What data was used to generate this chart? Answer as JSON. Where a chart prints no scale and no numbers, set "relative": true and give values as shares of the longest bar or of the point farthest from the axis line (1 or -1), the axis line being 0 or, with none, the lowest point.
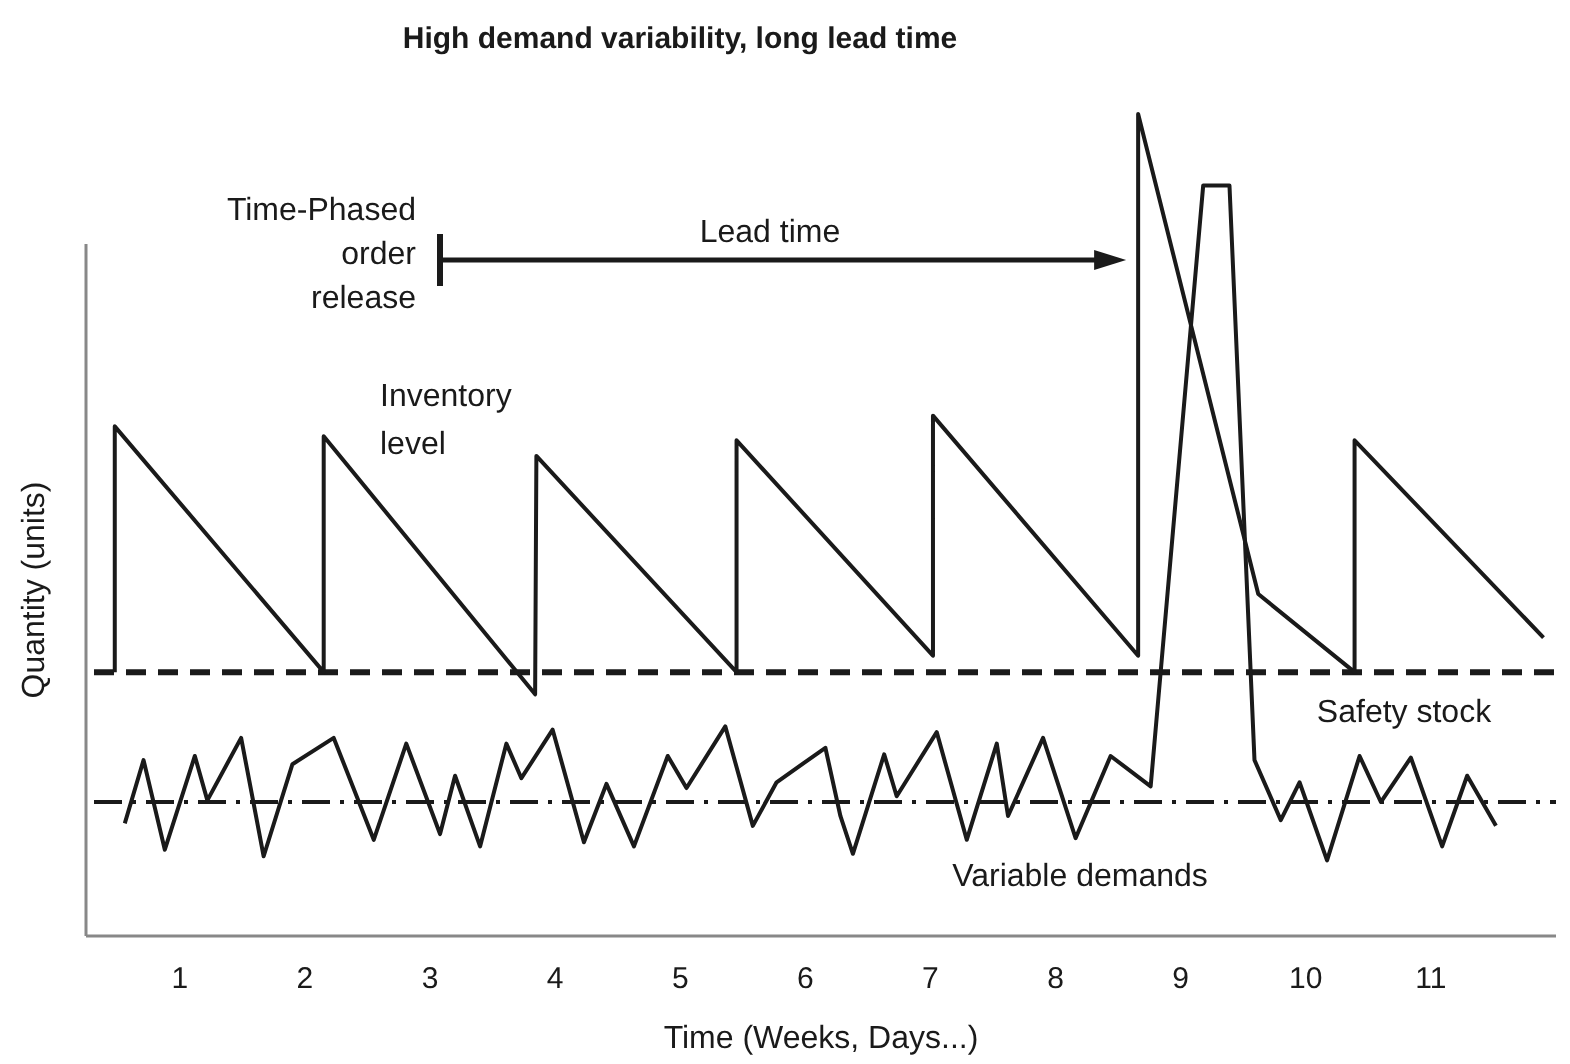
{
  "chart_data": {
    "type": "line",
    "title": "High demand variability, long lead time",
    "xlabel": "Time (Weeks, Days...)",
    "ylabel": "Quantity (units)",
    "relative": true,
    "xlim": [
      0.25,
      12
    ],
    "xticks": [
      1,
      2,
      3,
      4,
      5,
      6,
      7,
      8,
      9,
      10,
      11
    ],
    "tick_labels": "x",
    "grid": false,
    "marker": "none",
    "series": [
      {
        "name": "Inventory level",
        "color": "#1a1a1a",
        "x": [
          0.48,
          0.48,
          2.15,
          2.15,
          3.84,
          3.85,
          5.45,
          5.45,
          7.02,
          7.02,
          8.66,
          8.66,
          9.62,
          10.39,
          10.39,
          11.9
        ],
        "values": [
          0.321,
          0.62,
          0.321,
          0.608,
          0.294,
          0.584,
          0.321,
          0.603,
          0.341,
          0.633,
          0.341,
          1,
          0.416,
          0.321,
          0.603,
          0.363
        ]
      },
      {
        "name": "Variable demands",
        "color": "#1a1a1a",
        "x": [
          0.56,
          0.71,
          0.88,
          1.12,
          1.22,
          1.49,
          1.67,
          1.9,
          2.23,
          2.55,
          2.81,
          3.08,
          3.2,
          3.4,
          3.61,
          3.73,
          3.98,
          4.23,
          4.41,
          4.63,
          4.9,
          5.05,
          5.36,
          5.58,
          5.77,
          6.16,
          6.28,
          6.38,
          6.63,
          6.73,
          7.05,
          7.29,
          7.53,
          7.62,
          7.9,
          8.16,
          8.44,
          8.76,
          9.18,
          9.39,
          9.59,
          9.8,
          9.95,
          10.17,
          10.43,
          10.6,
          10.84,
          11.09,
          11.29,
          11.52
        ],
        "values": [
          0.137,
          0.214,
          0.105,
          0.219,
          0.165,
          0.241,
          0.097,
          0.209,
          0.241,
          0.117,
          0.234,
          0.124,
          0.195,
          0.109,
          0.234,
          0.192,
          0.251,
          0.114,
          0.185,
          0.109,
          0.219,
          0.18,
          0.255,
          0.134,
          0.187,
          0.229,
          0.146,
          0.1,
          0.221,
          0.17,
          0.248,
          0.117,
          0.234,
          0.146,
          0.241,
          0.119,
          0.219,
          0.182,
          0.913,
          0.913,
          0.214,
          0.141,
          0.187,
          0.092,
          0.219,
          0.163,
          0.217,
          0.109,
          0.195,
          0.134
        ]
      }
    ],
    "ref_lines": [
      {
        "axis": "y",
        "value": 0.321,
        "label": "Safety stock",
        "color": "#1a1a1a",
        "line_style": "dashed"
      },
      {
        "axis": "y",
        "value": 0.163,
        "color": "#1a1a1a",
        "line_style": "dashdot"
      }
    ],
    "annotations": [
      "Time-Phased order release",
      "Lead time"
    ]
  }
}
